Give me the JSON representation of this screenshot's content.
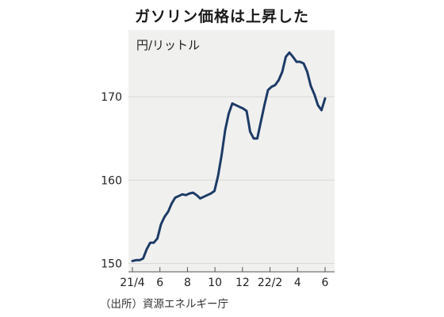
{
  "chart_data": {
    "type": "line",
    "title": "ガソリン価格は上昇した",
    "ylabel": "円/リットル",
    "source": "（出所）資源エネルギー庁",
    "ylim": [
      149,
      178
    ],
    "yticks": [
      "150",
      "160",
      "170"
    ],
    "xticks": [
      "21/4",
      "6",
      "8",
      "10",
      "12",
      "22/2",
      "4",
      "6"
    ],
    "line_color": "#1d3b66",
    "series": [
      {
        "values": [
          150.3,
          150.4,
          150.4,
          150.6,
          151.7,
          152.5,
          152.5,
          153.0,
          154.7,
          155.6,
          156.2,
          157.2,
          157.9,
          158.1,
          158.3,
          158.2,
          158.4,
          158.5,
          158.2,
          157.8,
          158.0,
          158.2,
          158.4,
          158.7,
          160.5,
          163.0,
          166.0,
          168.0,
          169.2,
          169.0,
          168.8,
          168.6,
          168.3,
          165.8,
          165.0,
          165.0,
          167.0,
          169.0,
          170.8,
          171.2,
          171.4,
          172.0,
          173.0,
          174.8,
          175.3,
          174.8,
          174.2,
          174.2,
          174.0,
          173.0,
          171.3,
          170.3,
          169.0,
          168.4,
          169.8
        ]
      }
    ]
  }
}
